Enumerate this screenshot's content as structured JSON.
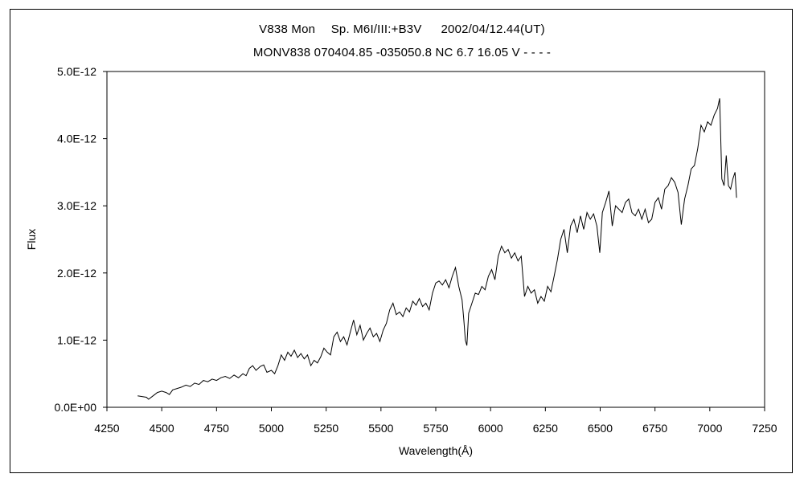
{
  "chart_data": {
    "type": "line",
    "title": "V838 Mon　 Sp. M6I/III:+B3V 　 2002/04/12.44(UT)",
    "subtitle": "MONV838 070404.85 -035050.8 NC 6.7 16.05 V - - - -",
    "xlabel": "Wavelength(Å)",
    "ylabel": "Flux",
    "xlim": [
      4250,
      7250
    ],
    "ylim": [
      0,
      5e-12
    ],
    "x_ticks": [
      "4250",
      "4500",
      "4750",
      "5000",
      "5250",
      "5500",
      "5750",
      "6000",
      "6250",
      "6500",
      "6750",
      "7000",
      "7250"
    ],
    "y_ticks": [
      "0.0E+00",
      "1.0E-12",
      "2.0E-12",
      "3.0E-12",
      "4.0E-12",
      "5.0E-12"
    ],
    "grid": false,
    "legend": "none",
    "series": [
      {
        "color": "#000000",
        "points": [
          [
            4390,
            0.17
          ],
          [
            4410,
            0.16
          ],
          [
            4430,
            0.15
          ],
          [
            4440,
            0.12
          ],
          [
            4460,
            0.17
          ],
          [
            4480,
            0.22
          ],
          [
            4500,
            0.24
          ],
          [
            4520,
            0.22
          ],
          [
            4535,
            0.19
          ],
          [
            4550,
            0.26
          ],
          [
            4570,
            0.28
          ],
          [
            4590,
            0.3
          ],
          [
            4610,
            0.33
          ],
          [
            4630,
            0.31
          ],
          [
            4650,
            0.36
          ],
          [
            4670,
            0.34
          ],
          [
            4690,
            0.4
          ],
          [
            4710,
            0.38
          ],
          [
            4730,
            0.42
          ],
          [
            4750,
            0.4
          ],
          [
            4770,
            0.44
          ],
          [
            4790,
            0.46
          ],
          [
            4810,
            0.43
          ],
          [
            4830,
            0.48
          ],
          [
            4850,
            0.44
          ],
          [
            4870,
            0.5
          ],
          [
            4885,
            0.47
          ],
          [
            4900,
            0.58
          ],
          [
            4915,
            0.62
          ],
          [
            4930,
            0.55
          ],
          [
            4950,
            0.61
          ],
          [
            4965,
            0.63
          ],
          [
            4980,
            0.52
          ],
          [
            5000,
            0.55
          ],
          [
            5015,
            0.5
          ],
          [
            5030,
            0.62
          ],
          [
            5045,
            0.78
          ],
          [
            5060,
            0.7
          ],
          [
            5075,
            0.82
          ],
          [
            5090,
            0.76
          ],
          [
            5105,
            0.85
          ],
          [
            5120,
            0.74
          ],
          [
            5135,
            0.8
          ],
          [
            5150,
            0.72
          ],
          [
            5165,
            0.78
          ],
          [
            5180,
            0.62
          ],
          [
            5195,
            0.7
          ],
          [
            5210,
            0.66
          ],
          [
            5225,
            0.75
          ],
          [
            5240,
            0.88
          ],
          [
            5255,
            0.82
          ],
          [
            5270,
            0.78
          ],
          [
            5285,
            1.05
          ],
          [
            5300,
            1.12
          ],
          [
            5315,
            0.98
          ],
          [
            5330,
            1.05
          ],
          [
            5345,
            0.93
          ],
          [
            5360,
            1.12
          ],
          [
            5375,
            1.3
          ],
          [
            5390,
            1.08
          ],
          [
            5405,
            1.22
          ],
          [
            5420,
            1.0
          ],
          [
            5435,
            1.1
          ],
          [
            5450,
            1.18
          ],
          [
            5465,
            1.05
          ],
          [
            5480,
            1.1
          ],
          [
            5495,
            0.98
          ],
          [
            5510,
            1.15
          ],
          [
            5525,
            1.25
          ],
          [
            5540,
            1.45
          ],
          [
            5555,
            1.55
          ],
          [
            5570,
            1.38
          ],
          [
            5585,
            1.42
          ],
          [
            5600,
            1.35
          ],
          [
            5615,
            1.48
          ],
          [
            5630,
            1.42
          ],
          [
            5645,
            1.58
          ],
          [
            5660,
            1.52
          ],
          [
            5675,
            1.62
          ],
          [
            5690,
            1.5
          ],
          [
            5705,
            1.55
          ],
          [
            5720,
            1.45
          ],
          [
            5735,
            1.7
          ],
          [
            5750,
            1.85
          ],
          [
            5765,
            1.88
          ],
          [
            5780,
            1.82
          ],
          [
            5795,
            1.9
          ],
          [
            5810,
            1.78
          ],
          [
            5825,
            1.95
          ],
          [
            5840,
            2.08
          ],
          [
            5855,
            1.8
          ],
          [
            5870,
            1.6
          ],
          [
            5878,
            1.3
          ],
          [
            5885,
            1.0
          ],
          [
            5892,
            0.92
          ],
          [
            5900,
            1.4
          ],
          [
            5915,
            1.55
          ],
          [
            5930,
            1.7
          ],
          [
            5945,
            1.68
          ],
          [
            5960,
            1.8
          ],
          [
            5975,
            1.75
          ],
          [
            5990,
            1.95
          ],
          [
            6005,
            2.05
          ],
          [
            6020,
            1.9
          ],
          [
            6035,
            2.25
          ],
          [
            6050,
            2.4
          ],
          [
            6065,
            2.3
          ],
          [
            6080,
            2.35
          ],
          [
            6095,
            2.22
          ],
          [
            6110,
            2.3
          ],
          [
            6125,
            2.18
          ],
          [
            6140,
            2.25
          ],
          [
            6155,
            1.65
          ],
          [
            6170,
            1.8
          ],
          [
            6185,
            1.7
          ],
          [
            6200,
            1.75
          ],
          [
            6215,
            1.55
          ],
          [
            6230,
            1.65
          ],
          [
            6245,
            1.58
          ],
          [
            6260,
            1.8
          ],
          [
            6275,
            1.72
          ],
          [
            6290,
            1.95
          ],
          [
            6305,
            2.2
          ],
          [
            6320,
            2.5
          ],
          [
            6335,
            2.65
          ],
          [
            6350,
            2.3
          ],
          [
            6365,
            2.7
          ],
          [
            6380,
            2.8
          ],
          [
            6395,
            2.6
          ],
          [
            6410,
            2.85
          ],
          [
            6425,
            2.65
          ],
          [
            6440,
            2.9
          ],
          [
            6455,
            2.8
          ],
          [
            6470,
            2.88
          ],
          [
            6485,
            2.7
          ],
          [
            6498,
            2.3
          ],
          [
            6510,
            2.9
          ],
          [
            6525,
            3.05
          ],
          [
            6540,
            3.22
          ],
          [
            6555,
            2.7
          ],
          [
            6570,
            3.0
          ],
          [
            6585,
            2.95
          ],
          [
            6600,
            2.9
          ],
          [
            6615,
            3.05
          ],
          [
            6630,
            3.1
          ],
          [
            6645,
            2.9
          ],
          [
            6660,
            2.85
          ],
          [
            6675,
            2.95
          ],
          [
            6690,
            2.8
          ],
          [
            6705,
            2.95
          ],
          [
            6720,
            2.75
          ],
          [
            6735,
            2.8
          ],
          [
            6750,
            3.05
          ],
          [
            6765,
            3.12
          ],
          [
            6780,
            2.95
          ],
          [
            6795,
            3.25
          ],
          [
            6810,
            3.3
          ],
          [
            6825,
            3.42
          ],
          [
            6840,
            3.35
          ],
          [
            6855,
            3.2
          ],
          [
            6870,
            2.72
          ],
          [
            6885,
            3.1
          ],
          [
            6900,
            3.3
          ],
          [
            6915,
            3.55
          ],
          [
            6930,
            3.6
          ],
          [
            6945,
            3.85
          ],
          [
            6960,
            4.2
          ],
          [
            6975,
            4.1
          ],
          [
            6990,
            4.25
          ],
          [
            7005,
            4.2
          ],
          [
            7020,
            4.35
          ],
          [
            7035,
            4.45
          ],
          [
            7045,
            4.6
          ],
          [
            7055,
            3.4
          ],
          [
            7065,
            3.3
          ],
          [
            7075,
            3.75
          ],
          [
            7085,
            3.3
          ],
          [
            7095,
            3.25
          ],
          [
            7105,
            3.4
          ],
          [
            7115,
            3.5
          ],
          [
            7122,
            3.12
          ]
        ]
      }
    ]
  }
}
